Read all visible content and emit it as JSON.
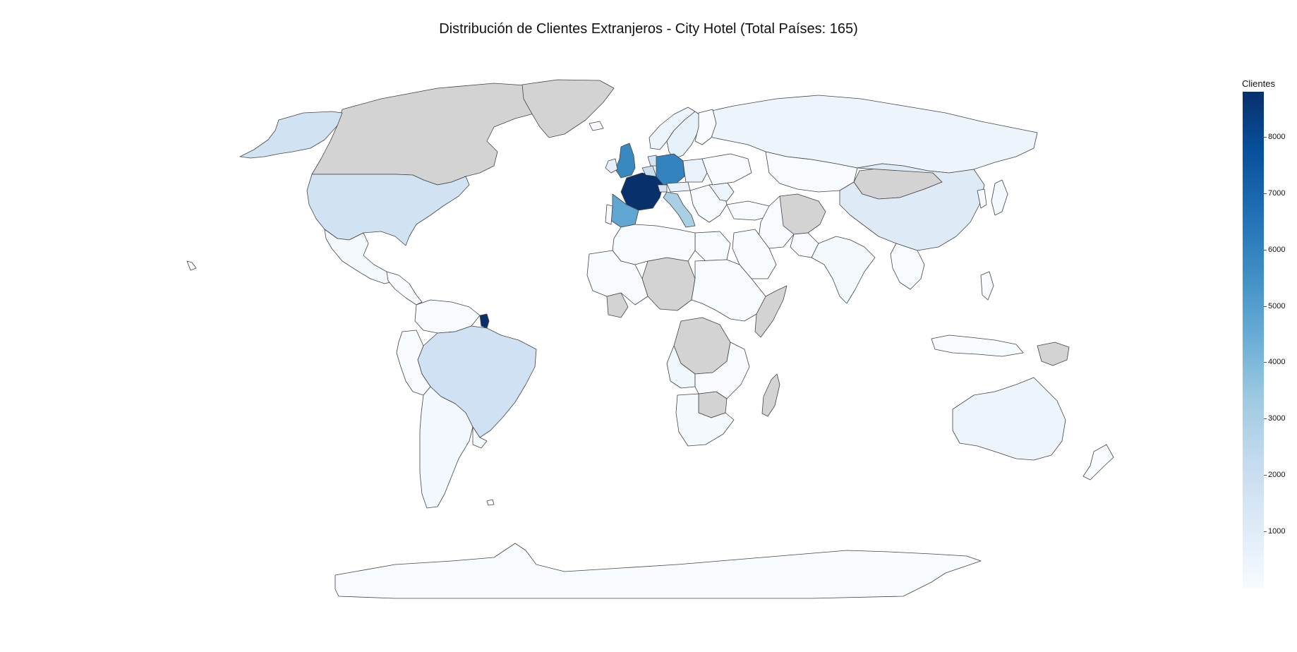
{
  "title": "Distribución de Clientes Extranjeros - City Hotel (Total Países: 165)",
  "colorbar": {
    "title": "Clientes",
    "min": 0,
    "max": 8800,
    "ticks": [
      "1000",
      "2000",
      "3000",
      "4000",
      "5000",
      "6000",
      "7000",
      "8000"
    ],
    "colorscale": [
      "#f7fbff",
      "#deebf7",
      "#c6dbef",
      "#9ecae1",
      "#6baed6",
      "#4292c6",
      "#2171b5",
      "#08519c",
      "#08306b"
    ]
  },
  "colors": {
    "no_data": "#d3d3d3",
    "border": "#444444"
  },
  "chart_data": {
    "type": "choropleth",
    "metric": "Clientes",
    "regions": [
      {
        "region": "France",
        "value": 8800
      },
      {
        "region": "French Guiana",
        "value": 8800
      },
      {
        "region": "Germany",
        "value": 6000
      },
      {
        "region": "United Kingdom",
        "value": 5800
      },
      {
        "region": "Spain",
        "value": 4700
      },
      {
        "region": "Italy",
        "value": 3000
      },
      {
        "region": "Belgium",
        "value": 2000
      },
      {
        "region": "Netherlands",
        "value": 1500
      },
      {
        "region": "Switzerland",
        "value": 1500
      },
      {
        "region": "Brazil",
        "value": 1800
      },
      {
        "region": "United States",
        "value": 1700
      },
      {
        "region": "China",
        "value": 1100
      },
      {
        "region": "Australia",
        "value": 450
      },
      {
        "region": "Russia",
        "value": 450
      },
      {
        "region": "Alaska",
        "value": 1700
      },
      {
        "region": "Sweden",
        "value": 700
      },
      {
        "region": "Norway",
        "value": 450
      },
      {
        "region": "Poland",
        "value": 600
      },
      {
        "region": "Romania",
        "value": 450
      },
      {
        "region": "Austria",
        "value": 600
      },
      {
        "region": "Ireland",
        "value": 800
      },
      {
        "region": "Mexico",
        "value": 150
      },
      {
        "region": "Argentina",
        "value": 200
      },
      {
        "region": "India",
        "value": 150
      },
      {
        "region": "Japan",
        "value": 200
      },
      {
        "region": "South Africa",
        "value": 150
      },
      {
        "region": "Angola",
        "value": 300
      },
      {
        "region": "Canada",
        "value": null
      },
      {
        "region": "Greenland",
        "value": null
      },
      {
        "region": "Mongolia",
        "value": null
      },
      {
        "region": "Afghanistan",
        "value": null
      },
      {
        "region": "Chad",
        "value": null
      },
      {
        "region": "Congo (DRC)",
        "value": null
      },
      {
        "region": "Somalia",
        "value": null
      },
      {
        "region": "Madagascar",
        "value": null
      },
      {
        "region": "Papua New Guinea",
        "value": null
      },
      {
        "region": "Botswana",
        "value": null
      }
    ]
  }
}
